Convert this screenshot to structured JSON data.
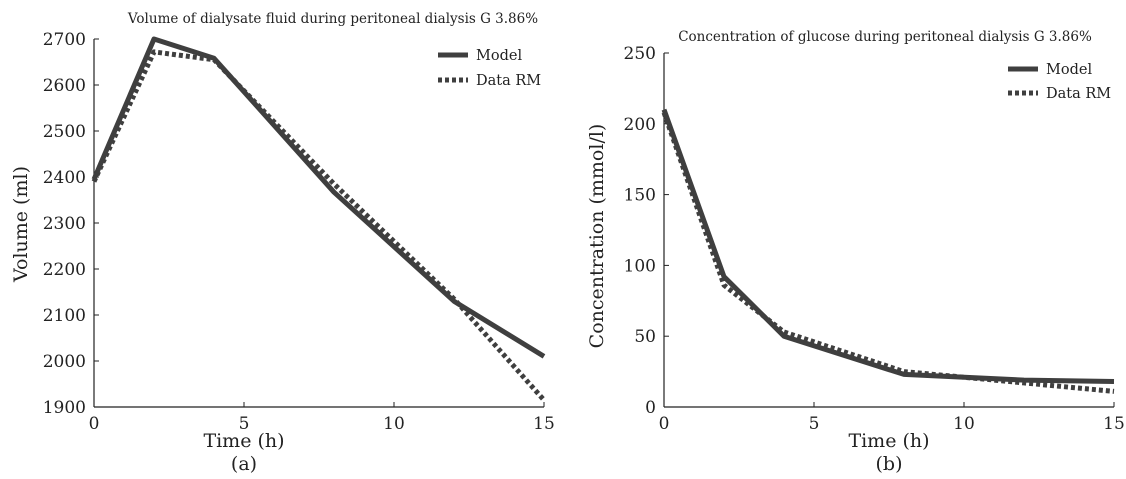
{
  "chart_data": [
    {
      "type": "line",
      "title": "Volume of dialysate fluid during peritoneal dialysis G 3.86%",
      "xlabel": "Time (h)",
      "ylabel": "Volume (ml)",
      "panel_label": "(a)",
      "xlim": [
        0,
        15
      ],
      "ylim": [
        1900,
        2700
      ],
      "xticks": [
        0,
        5,
        10,
        15
      ],
      "yticks": [
        1900,
        2000,
        2100,
        2200,
        2300,
        2400,
        2500,
        2600,
        2700
      ],
      "legend_position": "top-right",
      "series": [
        {
          "name": "Model",
          "style": "solid",
          "x": [
            0,
            2,
            4,
            8,
            12,
            15
          ],
          "y": [
            2395,
            2700,
            2658,
            2367,
            2130,
            2010
          ]
        },
        {
          "name": "Data RM",
          "style": "dotted",
          "x": [
            0,
            2,
            4,
            8,
            12,
            15
          ],
          "y": [
            2390,
            2672,
            2655,
            2385,
            2135,
            1915
          ]
        }
      ]
    },
    {
      "type": "line",
      "title": "Concentration of glucose during peritoneal dialysis G 3.86%",
      "xlabel": "Time (h)",
      "ylabel": "Concentration (mmol/l)",
      "panel_label": "(b)",
      "xlim": [
        0,
        15
      ],
      "ylim": [
        0,
        250
      ],
      "xticks": [
        0,
        5,
        10,
        15
      ],
      "yticks": [
        0,
        50,
        100,
        150,
        200,
        250
      ],
      "legend_position": "top-right",
      "series": [
        {
          "name": "Model",
          "style": "solid",
          "x": [
            0,
            2,
            4,
            8,
            12,
            15
          ],
          "y": [
            210,
            92,
            50,
            23,
            19,
            18
          ]
        },
        {
          "name": "Data RM",
          "style": "dotted",
          "x": [
            0,
            2,
            4,
            8,
            12,
            15
          ],
          "y": [
            208,
            86,
            53,
            25,
            17,
            11
          ]
        }
      ]
    }
  ],
  "colors": {
    "line": "#3f3f3f",
    "axis": "#222222",
    "text": "#222222"
  }
}
